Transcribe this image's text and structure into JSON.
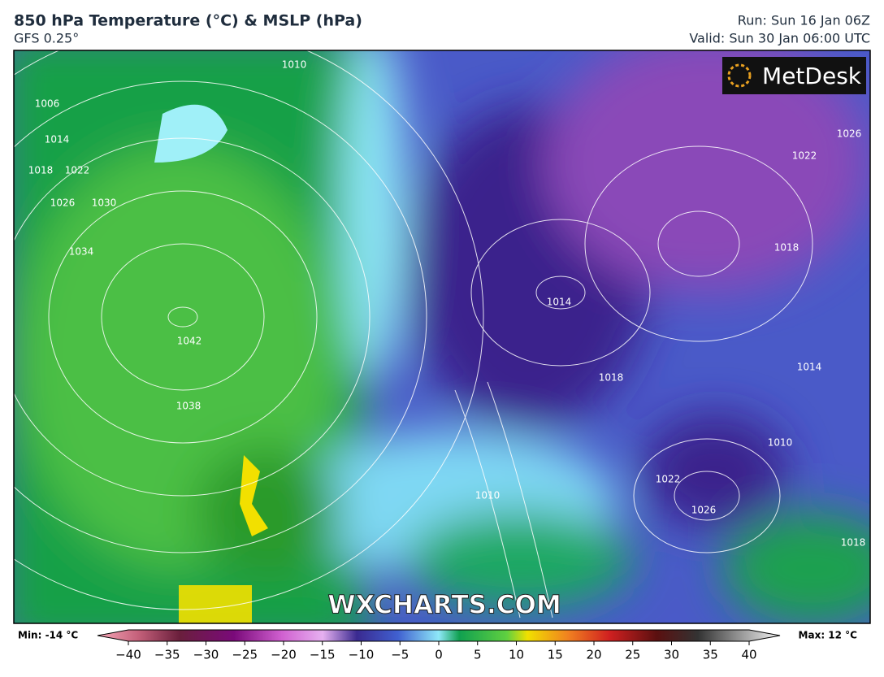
{
  "header": {
    "title": "850 hPa Temperature (°C) & MSLP (hPa)",
    "subtitle": "GFS 0.25°",
    "run": "Run: Sun 16 Jan 06Z",
    "valid": "Valid: Sun 30 Jan 06:00 UTC"
  },
  "map": {
    "logo": "MetDesk",
    "watermark": "WXCHARTS.COM",
    "isobar_labels": [
      "1042",
      "1038",
      "1034",
      "1030",
      "1026",
      "1022",
      "1018",
      "1014",
      "1010",
      "1006",
      "1014",
      "1018",
      "1022",
      "1026",
      "1018",
      "1014",
      "1010",
      "1022",
      "1026",
      "1010",
      "1018"
    ]
  },
  "colorbar": {
    "min_label": "Min: -14 °C",
    "max_label": "Max: 12 °C",
    "ticks": [
      {
        "value": -40,
        "label": "−40"
      },
      {
        "value": -35,
        "label": "−35"
      },
      {
        "value": -30,
        "label": "−30"
      },
      {
        "value": -25,
        "label": "−25"
      },
      {
        "value": -20,
        "label": "−20"
      },
      {
        "value": -15,
        "label": "−15"
      },
      {
        "value": -10,
        "label": "−10"
      },
      {
        "value": -5,
        "label": "−5"
      },
      0,
      5,
      10,
      15,
      20,
      25,
      30,
      35,
      40
    ]
  }
}
